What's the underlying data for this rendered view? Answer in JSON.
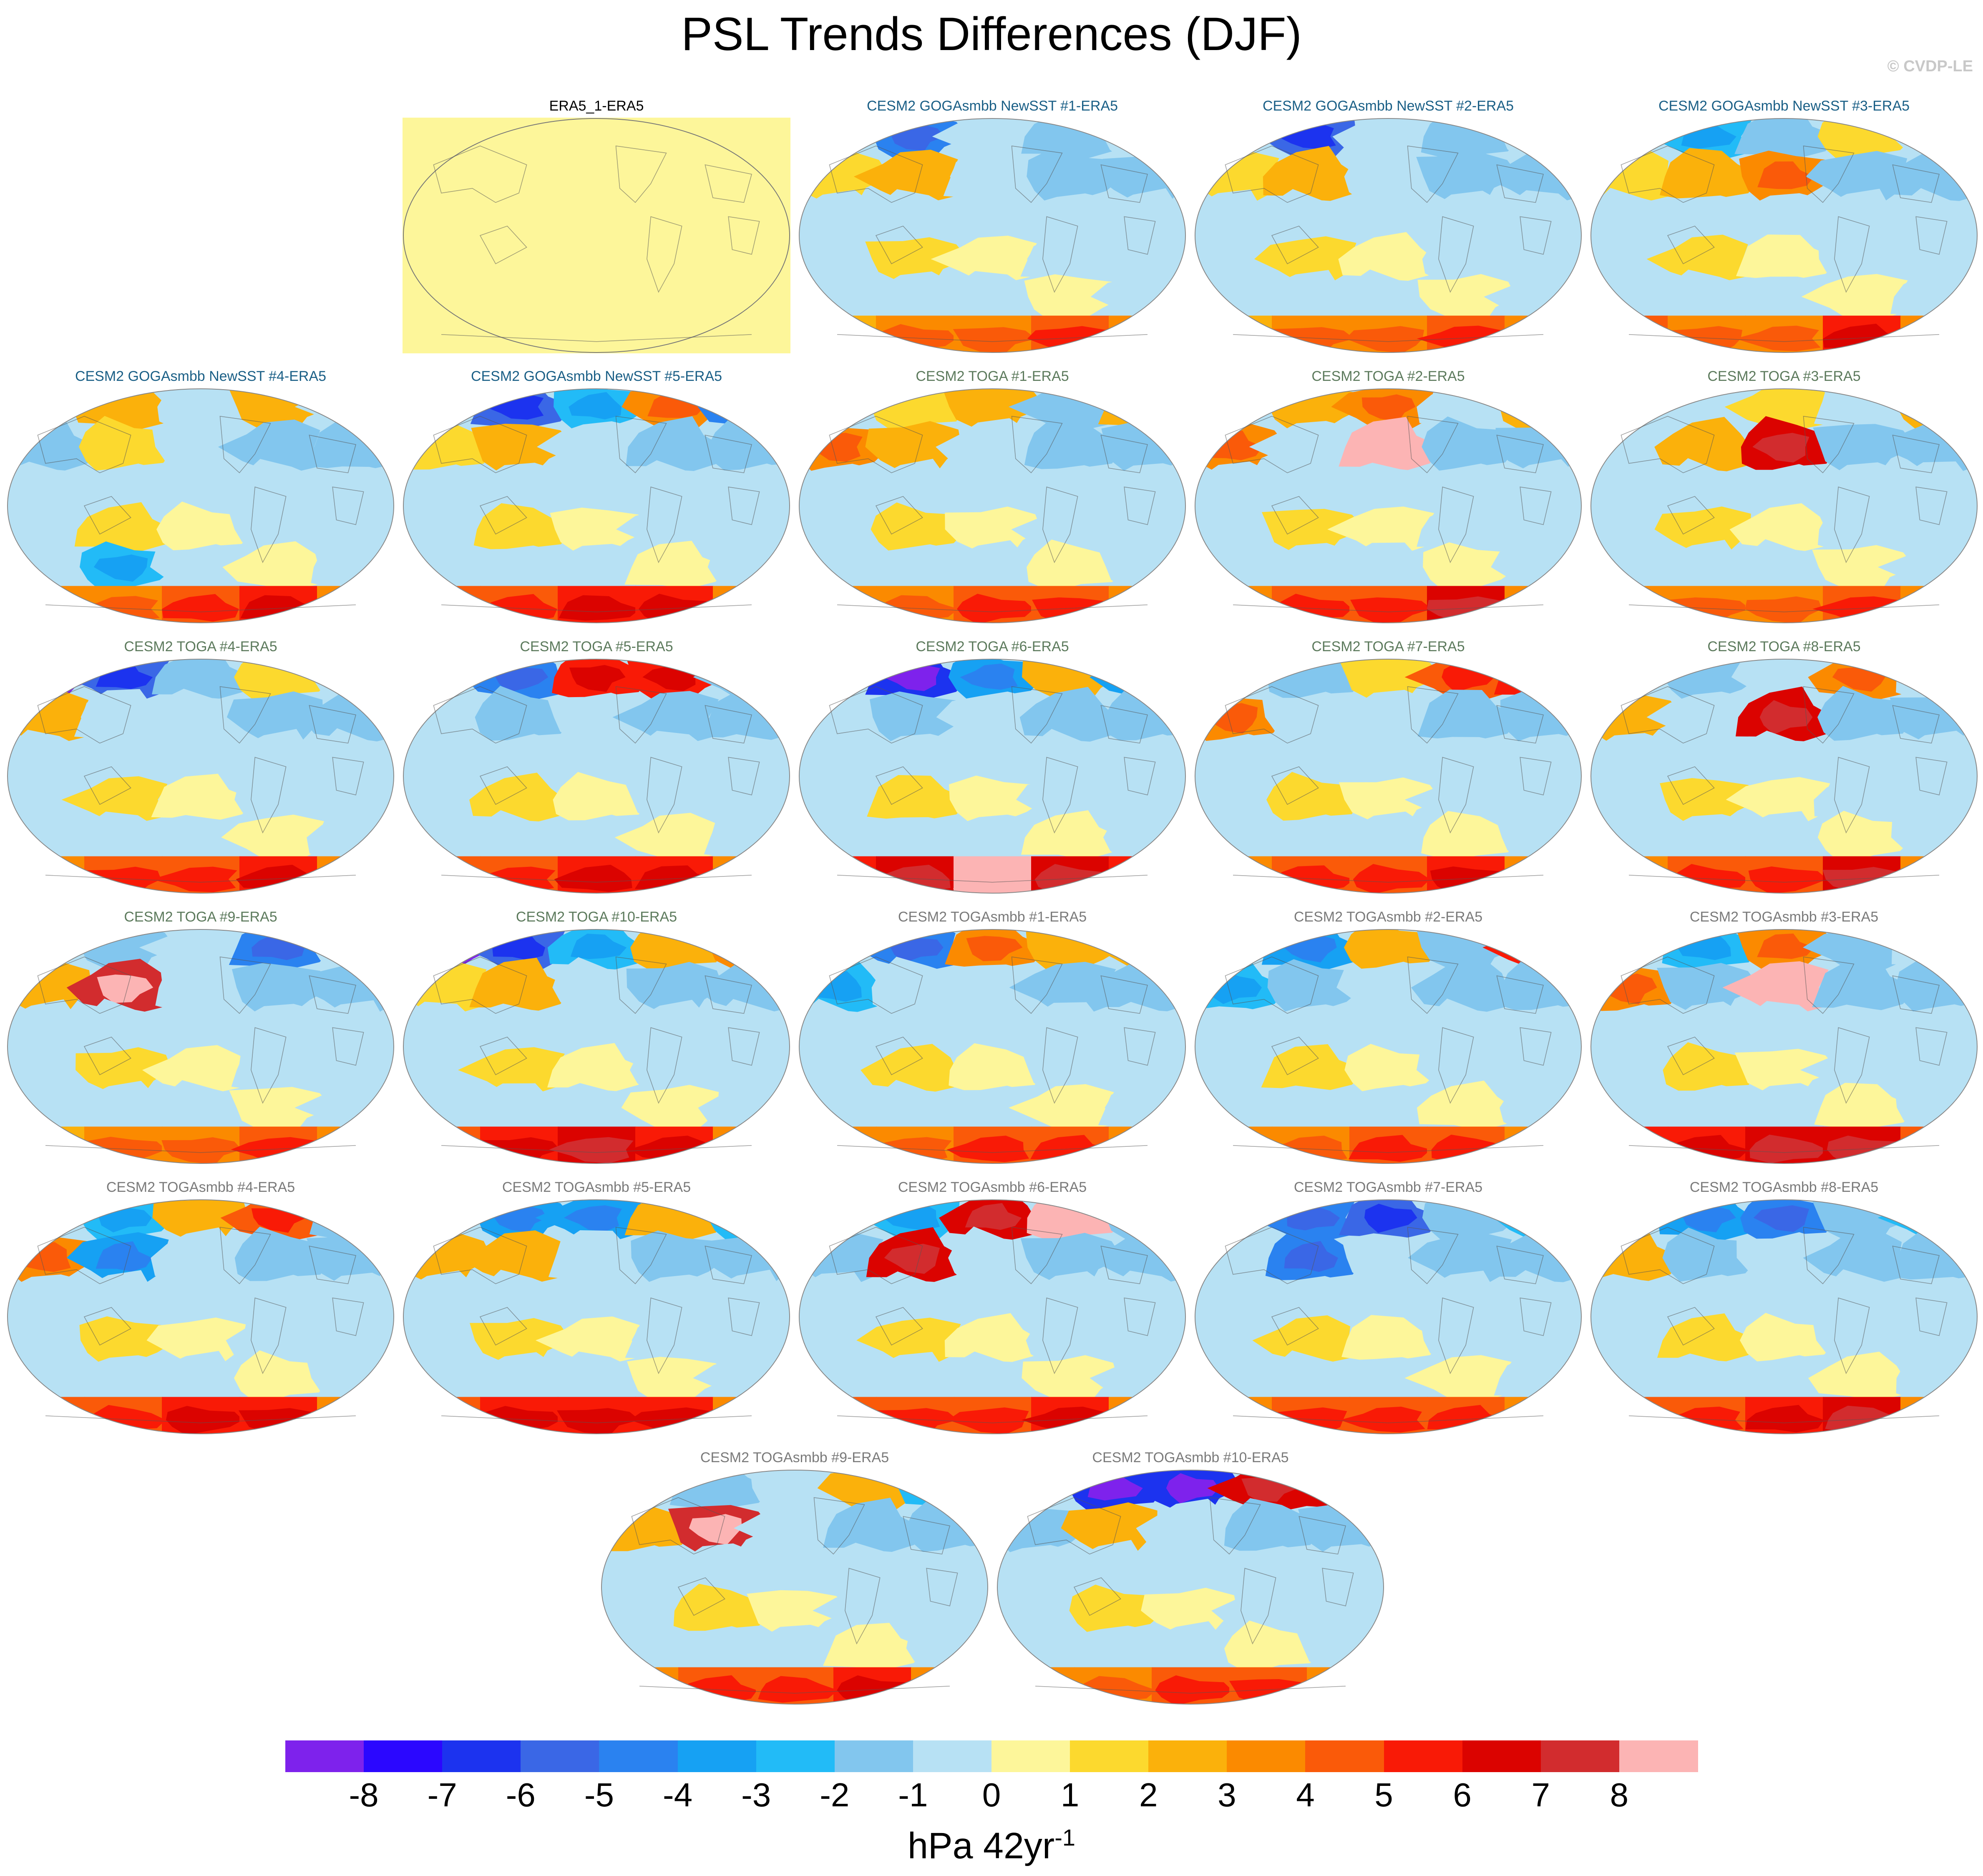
{
  "title": "PSL Trends Differences (DJF)",
  "credit": "© CVDP-LE",
  "units": {
    "base": "hPa 42yr",
    "exp": "-1"
  },
  "colorbar": {
    "labels": [
      "-8",
      "-7",
      "-6",
      "-5",
      "-4",
      "-3",
      "-2",
      "-1",
      "0",
      "1",
      "2",
      "3",
      "4",
      "5",
      "6",
      "7",
      "8"
    ],
    "colors": [
      "#7e22ec",
      "#2b07ff",
      "#1c33ef",
      "#3a67e6",
      "#2a82f0",
      "#16a1f3",
      "#22bbf7",
      "#82c6ee",
      "#b7e1f4",
      "#fdf69a",
      "#fcd92e",
      "#fbb10b",
      "#fb8a00",
      "#fa5a09",
      "#f91a06",
      "#db0300",
      "#d22c2e",
      "#fcb4b4"
    ]
  },
  "panels": [
    {
      "title": "ERA5_1-ERA5",
      "group": "obs",
      "field": []
    },
    {
      "title": "CESM2 GOGAsmbb NewSST #1-ERA5",
      "group": "goga",
      "field": [
        -1,
        -5,
        -1,
        -2,
        -1,
        1,
        2,
        -1,
        -2,
        -2,
        -1,
        -1,
        -1,
        -1,
        -1,
        -1,
        1,
        0,
        -1,
        -1,
        -1,
        -1,
        -1,
        0,
        -1,
        2,
        3,
        3,
        4,
        3
      ]
    },
    {
      "title": "CESM2 GOGAsmbb NewSST #2-ERA5",
      "group": "goga",
      "field": [
        -1,
        -6,
        -1,
        -2,
        -1,
        1,
        2,
        -1,
        -2,
        -2,
        -1,
        -1,
        -1,
        -1,
        -1,
        -1,
        1,
        0,
        -1,
        -1,
        -1,
        -1,
        -1,
        0,
        -1,
        2,
        3,
        3,
        4,
        3
      ]
    },
    {
      "title": "CESM2 GOGAsmbb NewSST #3-ERA5",
      "group": "goga",
      "field": [
        -1,
        -3,
        -2,
        1,
        -1,
        1,
        2,
        3,
        -2,
        -2,
        -1,
        -1,
        -1,
        -1,
        -1,
        -1,
        1,
        0,
        -1,
        -1,
        -1,
        -1,
        -1,
        0,
        -1,
        4,
        3,
        3,
        5,
        3
      ]
    },
    {
      "title": "CESM2 GOGAsmbb NewSST #4-ERA5",
      "group": "goga",
      "field": [
        -1,
        2,
        -1,
        2,
        -1,
        -2,
        1,
        -1,
        -2,
        -2,
        -1,
        -1,
        -1,
        -1,
        -1,
        -1,
        1,
        0,
        -1,
        -1,
        -1,
        -3,
        -1,
        0,
        -1,
        3,
        3,
        4,
        5,
        3
      ]
    },
    {
      "title": "CESM2 GOGAsmbb NewSST #5-ERA5",
      "group": "goga",
      "field": [
        -1,
        -6,
        -3,
        3,
        -5,
        1,
        2,
        -1,
        -2,
        -2,
        -1,
        -1,
        -1,
        -1,
        -1,
        -1,
        1,
        0,
        -1,
        -1,
        -1,
        -1,
        -1,
        0,
        -1,
        4,
        4,
        5,
        5,
        3
      ]
    },
    {
      "title": "CESM2 TOGA #1-ERA5",
      "group": "toga",
      "field": [
        -1,
        1,
        2,
        -2,
        2,
        3,
        2,
        -1,
        -2,
        -2,
        -1,
        -1,
        -1,
        -1,
        -1,
        -1,
        1,
        0,
        -1,
        -1,
        -1,
        -1,
        -1,
        0,
        -1,
        3,
        3,
        4,
        4,
        3
      ]
    },
    {
      "title": "CESM2 TOGA #2-ERA5",
      "group": "toga",
      "field": [
        -1,
        2,
        3,
        -1,
        2,
        3,
        -1,
        8,
        -2,
        -2,
        -1,
        -1,
        -1,
        -1,
        -1,
        -1,
        1,
        0,
        -1,
        -1,
        -1,
        -1,
        -1,
        0,
        -1,
        3,
        4,
        4,
        6,
        3
      ]
    },
    {
      "title": "CESM2 TOGA #3-ERA5",
      "group": "toga",
      "field": [
        -1,
        -1,
        1,
        -1,
        2,
        -1,
        2,
        6,
        -2,
        -2,
        -1,
        -1,
        -1,
        -1,
        -1,
        -1,
        1,
        0,
        -1,
        -1,
        -1,
        -1,
        -1,
        0,
        -1,
        3,
        3,
        3,
        4,
        3
      ]
    },
    {
      "title": "CESM2 TOGA #4-ERA5",
      "group": "toga",
      "field": [
        -8,
        -6,
        -2,
        1,
        -1,
        2,
        -1,
        -1,
        -2,
        -2,
        -1,
        -1,
        -1,
        -1,
        -1,
        -1,
        1,
        0,
        -1,
        -1,
        -1,
        -1,
        -1,
        0,
        -1,
        3,
        4,
        4,
        5,
        3
      ]
    },
    {
      "title": "CESM2 TOGA #5-ERA5",
      "group": "toga",
      "field": [
        -1,
        -5,
        5,
        5,
        -2,
        -1,
        -2,
        -1,
        -2,
        -2,
        -1,
        -1,
        -1,
        -1,
        -1,
        -1,
        1,
        0,
        -1,
        -1,
        -1,
        -1,
        -1,
        0,
        -1,
        4,
        4,
        5,
        5,
        3
      ]
    },
    {
      "title": "CESM2 TOGA #6-ERA5",
      "group": "toga",
      "field": [
        -1,
        -7,
        -4,
        2,
        -4,
        -1,
        -2,
        -1,
        -2,
        -2,
        -1,
        -1,
        -1,
        -1,
        -1,
        -1,
        1,
        0,
        -1,
        -1,
        -1,
        -1,
        -1,
        0,
        -1,
        5,
        6,
        8,
        6,
        5
      ]
    },
    {
      "title": "CESM2 TOGA #7-ERA5",
      "group": "toga",
      "field": [
        -1,
        -2,
        1,
        4,
        5,
        3,
        -1,
        -1,
        -2,
        -2,
        -1,
        -1,
        -1,
        -1,
        -1,
        -1,
        1,
        0,
        -1,
        -1,
        -1,
        -1,
        -1,
        0,
        -1,
        3,
        4,
        4,
        5,
        3
      ]
    },
    {
      "title": "CESM2 TOGA #8-ERA5",
      "group": "toga",
      "field": [
        -1,
        -2,
        -1,
        3,
        -1,
        2,
        -1,
        6,
        -2,
        -2,
        -1,
        -1,
        -1,
        -1,
        -1,
        -1,
        1,
        0,
        -1,
        -1,
        -1,
        -1,
        -1,
        0,
        -1,
        3,
        4,
        4,
        6,
        3
      ]
    },
    {
      "title": "CESM2 TOGA #9-ERA5",
      "group": "toga",
      "field": [
        -1,
        -2,
        -1,
        -5,
        -1,
        2,
        7,
        -1,
        -2,
        -2,
        -1,
        -1,
        -1,
        -1,
        -1,
        -1,
        1,
        0,
        -1,
        -1,
        -1,
        -1,
        -1,
        0,
        -1,
        2,
        3,
        3,
        4,
        3
      ]
    },
    {
      "title": "CESM2 TOGA #10-ERA5",
      "group": "toga",
      "field": [
        -8,
        -6,
        -3,
        2,
        3,
        1,
        2,
        -1,
        -2,
        -2,
        -1,
        -1,
        -1,
        -1,
        -1,
        -1,
        1,
        0,
        -1,
        -1,
        -1,
        -1,
        -1,
        0,
        -1,
        4,
        5,
        6,
        5,
        3
      ]
    },
    {
      "title": "CESM2 TOGAsmbb #1-ERA5",
      "group": "togasmbb",
      "field": [
        -1,
        -5,
        3,
        2,
        2,
        -3,
        -1,
        -1,
        -2,
        -2,
        -1,
        -1,
        -1,
        -1,
        -1,
        -1,
        1,
        0,
        -1,
        -1,
        -1,
        -1,
        -1,
        0,
        -1,
        3,
        3,
        4,
        4,
        3
      ]
    },
    {
      "title": "CESM2 TOGAsmbb #2-ERA5",
      "group": "togasmbb",
      "field": [
        -1,
        -4,
        2,
        -2,
        5,
        -3,
        -2,
        -1,
        -2,
        -2,
        -1,
        -1,
        -1,
        -1,
        -1,
        -1,
        1,
        0,
        -1,
        -1,
        -1,
        -1,
        -1,
        0,
        -1,
        3,
        3,
        4,
        4,
        3
      ]
    },
    {
      "title": "CESM2 TOGAsmbb #3-ERA5",
      "group": "togasmbb",
      "field": [
        -1,
        -3,
        3,
        -2,
        -1,
        3,
        -2,
        8,
        -2,
        -2,
        -1,
        -1,
        -1,
        -1,
        -1,
        -1,
        1,
        0,
        -1,
        -1,
        -1,
        -1,
        -1,
        0,
        -1,
        5,
        5,
        6,
        6,
        4
      ]
    },
    {
      "title": "CESM2 TOGAsmbb #4-ERA5",
      "group": "togasmbb",
      "field": [
        -1,
        -3,
        2,
        4,
        -2,
        3,
        -4,
        -1,
        -2,
        -2,
        -1,
        -1,
        -1,
        -1,
        -1,
        -1,
        1,
        0,
        -1,
        -1,
        -1,
        -1,
        -1,
        0,
        -1,
        4,
        4,
        5,
        5,
        3
      ]
    },
    {
      "title": "CESM2 TOGAsmbb #5-ERA5",
      "group": "togasmbb",
      "field": [
        -1,
        -4,
        -4,
        2,
        -3,
        2,
        2,
        -1,
        -2,
        -2,
        -1,
        -1,
        -1,
        -1,
        -1,
        -1,
        1,
        0,
        -1,
        -1,
        -1,
        -1,
        -1,
        0,
        -1,
        4,
        5,
        5,
        5,
        3
      ]
    },
    {
      "title": "CESM2 TOGAsmbb #6-ERA5",
      "group": "togasmbb",
      "field": [
        -1,
        -3,
        6,
        8,
        -2,
        -2,
        6,
        -1,
        -2,
        -2,
        -1,
        -1,
        -1,
        -1,
        -1,
        -1,
        1,
        0,
        -1,
        -1,
        -1,
        -1,
        -1,
        0,
        -1,
        4,
        4,
        4,
        5,
        3
      ]
    },
    {
      "title": "CESM2 TOGAsmbb #7-ERA5",
      "group": "togasmbb",
      "field": [
        -1,
        -5,
        -6,
        -2,
        -3,
        -1,
        -5,
        -1,
        -2,
        -2,
        -1,
        -1,
        -1,
        -1,
        -1,
        -1,
        1,
        0,
        -1,
        -1,
        -1,
        -1,
        -1,
        0,
        -1,
        3,
        4,
        4,
        4,
        3
      ]
    },
    {
      "title": "CESM2 TOGAsmbb #8-ERA5",
      "group": "togasmbb",
      "field": [
        -1,
        -4,
        -5,
        -2,
        -3,
        2,
        -2,
        -1,
        -2,
        -2,
        -1,
        -1,
        -1,
        -1,
        -1,
        -1,
        1,
        0,
        -1,
        -1,
        -1,
        -1,
        -1,
        0,
        -1,
        4,
        4,
        5,
        6,
        3
      ]
    },
    {
      "title": "CESM2 TOGAsmbb #9-ERA5",
      "group": "togasmbb",
      "field": [
        -1,
        -2,
        -1,
        2,
        -3,
        2,
        7,
        -1,
        -2,
        -2,
        -1,
        -1,
        -1,
        -1,
        -1,
        -1,
        1,
        0,
        -1,
        -1,
        -1,
        -1,
        -1,
        0,
        -1,
        3,
        4,
        4,
        5,
        3
      ]
    },
    {
      "title": "CESM2 TOGAsmbb #10-ERA5",
      "group": "togasmbb",
      "field": [
        -1,
        -7,
        -7,
        6,
        6,
        -2,
        2,
        -1,
        -2,
        -2,
        -1,
        -1,
        -1,
        -1,
        -1,
        -1,
        1,
        0,
        -1,
        -1,
        -1,
        -1,
        -1,
        0,
        -1,
        3,
        3,
        4,
        4,
        3
      ]
    }
  ],
  "group_title_colors": {
    "obs": "#000000",
    "goga": "#1a5f86",
    "toga": "#5c7a5c",
    "togasmbb": "#7a7a7a"
  }
}
